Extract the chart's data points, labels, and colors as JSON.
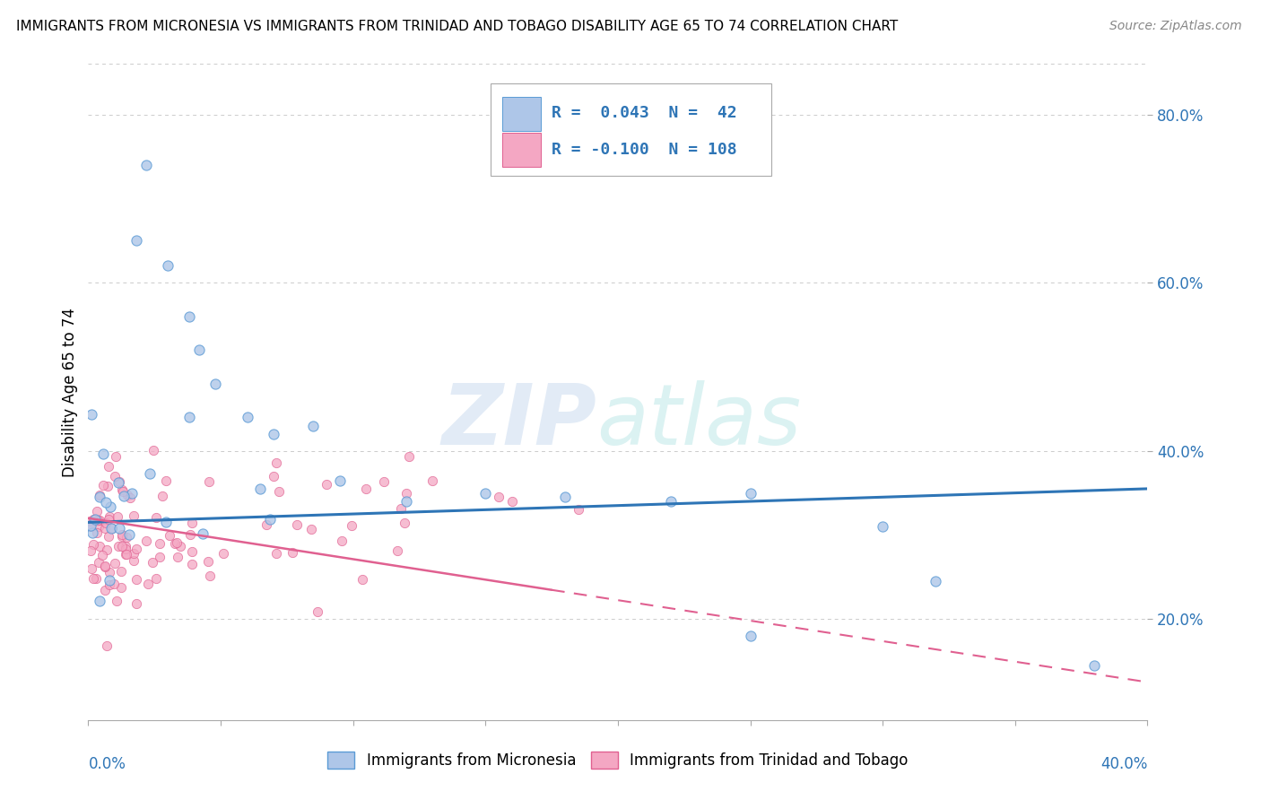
{
  "title": "IMMIGRANTS FROM MICRONESIA VS IMMIGRANTS FROM TRINIDAD AND TOBAGO DISABILITY AGE 65 TO 74 CORRELATION CHART",
  "source": "Source: ZipAtlas.com",
  "ylabel": "Disability Age 65 to 74",
  "xlim": [
    0.0,
    0.4
  ],
  "ylim": [
    0.08,
    0.86
  ],
  "yticks": [
    0.2,
    0.4,
    0.6,
    0.8
  ],
  "ytick_labels": [
    "20.0%",
    "40.0%",
    "60.0%",
    "80.0%"
  ],
  "series_micronesia": {
    "label": "Immigrants from Micronesia",
    "color": "#aec6e8",
    "edge_color": "#5b9bd5",
    "trend_color": "#2e75b6",
    "R": 0.043,
    "N": 42
  },
  "series_trinidad": {
    "label": "Immigrants from Trinidad and Tobago",
    "color": "#f4a7c3",
    "edge_color": "#e06090",
    "trend_color": "#e06090",
    "R": -0.1,
    "N": 108
  },
  "legend_color_blue": "#2e75b6",
  "legend_box_blue": "#aec6e8",
  "legend_box_pink": "#f4a7c3",
  "watermark_zip_color": "#d0dff0",
  "watermark_atlas_color": "#c8e8e8",
  "background_color": "#ffffff",
  "grid_color": "#cccccc",
  "axis_tick_color": "#2e75b6",
  "title_fontsize": 11,
  "source_fontsize": 10,
  "legend_fontsize": 13
}
